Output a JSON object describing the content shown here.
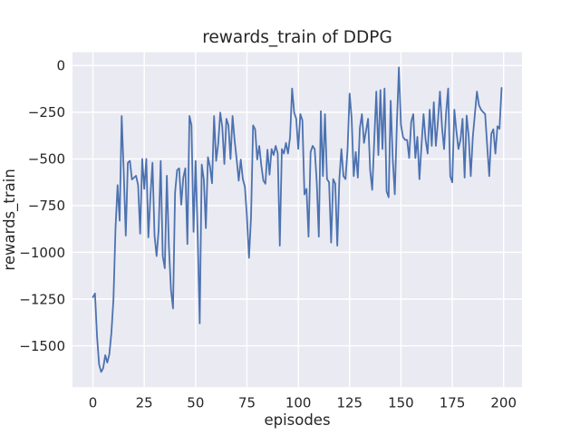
{
  "figure": {
    "title": "rewards_train of DDPG",
    "xlabel": "episodes",
    "ylabel": "rewards_train"
  },
  "chart_data": {
    "type": "line",
    "title": "rewards_train of DDPG",
    "xlabel": "episodes",
    "ylabel": "rewards_train",
    "x_start": 0,
    "x_step": 1,
    "xlim": [
      -9.95,
      208.95
    ],
    "ylim": [
      -1721.5,
      71.5
    ],
    "xticks": [
      0,
      25,
      50,
      75,
      100,
      125,
      150,
      175,
      200
    ],
    "xtick_labels": [
      "0",
      "25",
      "50",
      "75",
      "100",
      "125",
      "150",
      "175",
      "200"
    ],
    "yticks": [
      0,
      -250,
      -500,
      -750,
      -1000,
      -1250,
      -1500
    ],
    "ytick_labels": [
      "0",
      "−250",
      "−500",
      "−750",
      "−1000",
      "−1250",
      "−1500"
    ],
    "grid": true,
    "legend": "none",
    "style": {
      "fig_bg": "#ffffff",
      "plot_bg": "#eaeaf2",
      "grid_color": "#ffffff",
      "text_color": "#262626",
      "line_color": "#4c72b0",
      "line_width": 1.8
    },
    "series": [
      {
        "name": "rewards_train",
        "color": "#4c72b0",
        "values": [
          -1240,
          -1220,
          -1450,
          -1600,
          -1640,
          -1620,
          -1550,
          -1590,
          -1545,
          -1430,
          -1250,
          -870,
          -640,
          -830,
          -270,
          -570,
          -910,
          -520,
          -510,
          -610,
          -600,
          -590,
          -640,
          -900,
          -500,
          -660,
          -500,
          -920,
          -700,
          -520,
          -910,
          -1020,
          -880,
          -510,
          -1020,
          -1085,
          -590,
          -970,
          -1200,
          -1300,
          -680,
          -560,
          -550,
          -745,
          -600,
          -550,
          -956,
          -270,
          -320,
          -890,
          -510,
          -900,
          -1380,
          -530,
          -610,
          -870,
          -490,
          -540,
          -630,
          -270,
          -510,
          -420,
          -252,
          -330,
          -527,
          -285,
          -320,
          -500,
          -270,
          -400,
          -503,
          -616,
          -503,
          -608,
          -649,
          -810,
          -1029,
          -810,
          -320,
          -341,
          -503,
          -430,
          -535,
          -616,
          -633,
          -450,
          -584,
          -447,
          -479,
          -430,
          -470,
          -964,
          -447,
          -471,
          -414,
          -471,
          -382,
          -123,
          -252,
          -285,
          -446,
          -260,
          -293,
          -690,
          -660,
          -916,
          -463,
          -430,
          -447,
          -625,
          -916,
          -244,
          -592,
          -260,
          -608,
          -625,
          -948,
          -608,
          -632,
          -964,
          -608,
          -447,
          -592,
          -608,
          -447,
          -150,
          -285,
          -592,
          -463,
          -600,
          -333,
          -260,
          -414,
          -350,
          -285,
          -560,
          -665,
          -400,
          -139,
          -479,
          -131,
          -447,
          -123,
          -673,
          -705,
          -188,
          -500,
          -689,
          -317,
          -10,
          -317,
          -382,
          -398,
          -398,
          -495,
          -300,
          -260,
          -495,
          -382,
          -608,
          -430,
          -260,
          -398,
          -471,
          -236,
          -430,
          -196,
          -430,
          -300,
          -139,
          -330,
          -447,
          -250,
          -123,
          -592,
          -625,
          -236,
          -350,
          -447,
          -398,
          -285,
          -600,
          -268,
          -382,
          -592,
          -382,
          -260,
          -139,
          -212,
          -236,
          -249,
          -260,
          -430,
          -592,
          -366,
          -341,
          -471,
          -325,
          -338,
          -120
        ]
      }
    ]
  }
}
